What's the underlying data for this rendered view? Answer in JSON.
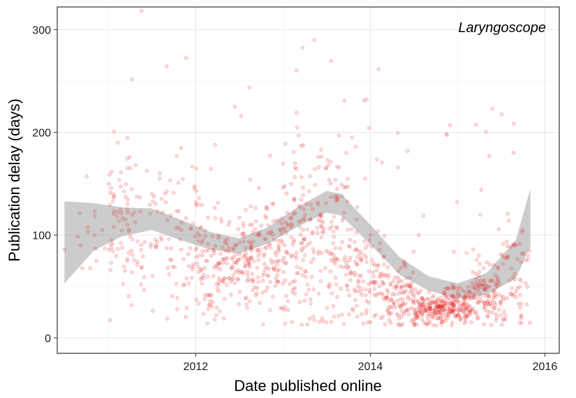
{
  "chart_data": {
    "type": "scatter",
    "title": "",
    "annotation": "Laryngoscope",
    "xlabel": "Date published online",
    "ylabel": "Publication delay (days)",
    "xlim": [
      "2010-06-01",
      "2016-03-01"
    ],
    "ylim": [
      -15,
      322
    ],
    "x_ticks": [
      "2012-01-01",
      "2014-01-01",
      "2016-01-01"
    ],
    "x_tick_labels": [
      "2012",
      "2014",
      "2016"
    ],
    "y_ticks": [
      0,
      100,
      200,
      300
    ],
    "grid": true,
    "point_color": "#e41a1c",
    "point_opacity": 0.15,
    "band_color": "#999999",
    "smooth": [
      {
        "date": "2010-07-01",
        "fit": 93,
        "lo": 53,
        "hi": 133
      },
      {
        "date": "2010-11-01",
        "fit": 108,
        "lo": 85,
        "hi": 131
      },
      {
        "date": "2011-03-01",
        "fit": 113,
        "lo": 99,
        "hi": 127
      },
      {
        "date": "2011-07-01",
        "fit": 115,
        "lo": 105,
        "hi": 126
      },
      {
        "date": "2011-11-01",
        "fit": 105,
        "lo": 95,
        "hi": 115
      },
      {
        "date": "2012-03-01",
        "fit": 95,
        "lo": 86,
        "hi": 103
      },
      {
        "date": "2012-07-01",
        "fit": 90,
        "lo": 82,
        "hi": 97
      },
      {
        "date": "2012-11-01",
        "fit": 100,
        "lo": 92,
        "hi": 108
      },
      {
        "date": "2013-03-01",
        "fit": 117,
        "lo": 108,
        "hi": 127
      },
      {
        "date": "2013-07-01",
        "fit": 132,
        "lo": 122,
        "hi": 143
      },
      {
        "date": "2013-09-01",
        "fit": 129,
        "lo": 119,
        "hi": 140
      },
      {
        "date": "2014-01-01",
        "fit": 100,
        "lo": 91,
        "hi": 110
      },
      {
        "date": "2014-05-01",
        "fit": 70,
        "lo": 62,
        "hi": 79
      },
      {
        "date": "2014-09-01",
        "fit": 53,
        "lo": 46,
        "hi": 60
      },
      {
        "date": "2015-01-01",
        "fit": 45,
        "lo": 38,
        "hi": 53
      },
      {
        "date": "2015-05-01",
        "fit": 52,
        "lo": 42,
        "hi": 63
      },
      {
        "date": "2015-09-01",
        "fit": 75,
        "lo": 58,
        "hi": 95
      },
      {
        "date": "2015-11-01",
        "fit": 117,
        "lo": 89,
        "hi": 145
      }
    ],
    "clusters": [
      {
        "start": "2010-07-01",
        "end": "2011-01-01",
        "n": 16,
        "center": 90,
        "spread": 40
      },
      {
        "start": "2011-01-01",
        "end": "2011-04-01",
        "n": 60,
        "center": 110,
        "spread": 55
      },
      {
        "start": "2011-04-01",
        "end": "2011-09-01",
        "n": 55,
        "center": 100,
        "spread": 50
      },
      {
        "start": "2011-09-01",
        "end": "2012-01-01",
        "n": 55,
        "center": 95,
        "spread": 55
      },
      {
        "start": "2012-01-01",
        "end": "2012-05-01",
        "n": 100,
        "center": 70,
        "spread": 40
      },
      {
        "start": "2012-05-01",
        "end": "2012-09-01",
        "n": 110,
        "center": 75,
        "spread": 30
      },
      {
        "start": "2012-09-01",
        "end": "2013-01-01",
        "n": 100,
        "center": 80,
        "spread": 40
      },
      {
        "start": "2013-01-01",
        "end": "2013-05-01",
        "n": 120,
        "center": 90,
        "spread": 60
      },
      {
        "start": "2013-05-01",
        "end": "2013-10-01",
        "n": 130,
        "center": 100,
        "spread": 75
      },
      {
        "start": "2013-10-01",
        "end": "2014-03-01",
        "n": 120,
        "center": 60,
        "spread": 35
      },
      {
        "start": "2014-03-01",
        "end": "2014-07-01",
        "n": 110,
        "center": 40,
        "spread": 25
      },
      {
        "start": "2014-07-01",
        "end": "2014-11-01",
        "n": 150,
        "center": 28,
        "spread": 12
      },
      {
        "start": "2014-11-01",
        "end": "2015-03-01",
        "n": 150,
        "center": 32,
        "spread": 14
      },
      {
        "start": "2015-03-01",
        "end": "2015-07-01",
        "n": 120,
        "center": 42,
        "spread": 22
      },
      {
        "start": "2015-07-01",
        "end": "2015-11-01",
        "n": 70,
        "center": 60,
        "spread": 45
      }
    ]
  }
}
